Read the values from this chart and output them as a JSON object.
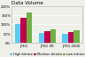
{
  "title": "Data Volume",
  "groups": [
    "JPEG",
    "JPEG XR",
    "JPEG 2000"
  ],
  "series": [
    {
      "label": "High bitrate",
      "color": "#5bc8f5",
      "values": [
        100,
        55,
        50
      ]
    },
    {
      "label": "Medium bitrate",
      "color": "#c0004e",
      "values": [
        135,
        65,
        60
      ]
    },
    {
      "label": "Low bitrate",
      "color": "#70b244",
      "values": [
        165,
        75,
        70
      ]
    }
  ],
  "ylim": [
    0,
    200
  ],
  "yticks": [
    0,
    50,
    100,
    150,
    200
  ],
  "yticklabels": [
    "0%",
    "50%",
    "100%",
    "150%",
    "200%"
  ],
  "title_fontsize": 4.0,
  "tick_fontsize": 2.8,
  "legend_fontsize": 2.6,
  "bar_width": 0.24,
  "background_color": "#f0f0eb",
  "grid_color": "#ffffff",
  "spine_color": "#aaaaaa"
}
